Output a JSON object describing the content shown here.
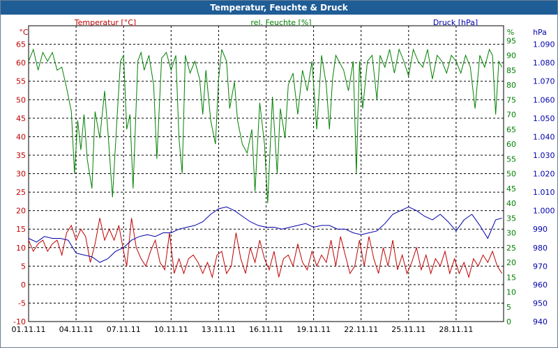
{
  "window": {
    "title": "Temperatur, Feuchte & Druck"
  },
  "colors": {
    "temperature": "#c00000",
    "humidity": "#008000",
    "pressure": "#0000aa",
    "grid": "#000000",
    "title_bar": "#1f5d96"
  },
  "chart_data": {
    "type": "line",
    "title": "Temperatur, Feuchte & Druck",
    "grid": true,
    "x_ticks": [
      "01.11.11",
      "04.11.11",
      "07.11.11",
      "10.11.11",
      "13.11.11",
      "16.11.11",
      "19.11.11",
      "22.11.11",
      "25.11.11",
      "28.11.11"
    ],
    "x_range_days": [
      1,
      31
    ],
    "axes": {
      "temperature": {
        "label": "Temperatur [°C]",
        "unit": "°C",
        "range": [
          -10,
          70
        ],
        "ticks": [
          -10,
          -5,
          0,
          5,
          10,
          15,
          20,
          25,
          30,
          35,
          40,
          45,
          50,
          55,
          60,
          65
        ]
      },
      "humidity": {
        "label": "rel. Feuchte [%]",
        "unit": "%",
        "range": [
          0,
          100
        ],
        "ticks": [
          0,
          5,
          10,
          15,
          20,
          25,
          30,
          35,
          40,
          45,
          50,
          55,
          60,
          65,
          70,
          75,
          80,
          85,
          90,
          95
        ]
      },
      "pressure": {
        "label": "Druck [hPa]",
        "unit": "hPa",
        "range": [
          940,
          1100
        ],
        "ticks": [
          "940",
          "950",
          "960",
          "970",
          "980",
          "990",
          "1.000",
          "1.010",
          "1.020",
          "1.030",
          "1.040",
          "1.050",
          "1.060",
          "1.070",
          "1.080",
          "1.090"
        ]
      }
    },
    "series": [
      {
        "name": "Temperatur [°C]",
        "axis": "temperature",
        "points": [
          [
            1.0,
            12
          ],
          [
            1.3,
            9
          ],
          [
            1.6,
            11
          ],
          [
            1.9,
            12
          ],
          [
            2.2,
            9
          ],
          [
            2.5,
            11
          ],
          [
            2.8,
            12
          ],
          [
            3.1,
            8
          ],
          [
            3.4,
            14
          ],
          [
            3.7,
            16
          ],
          [
            4.0,
            12
          ],
          [
            4.3,
            15
          ],
          [
            4.6,
            13
          ],
          [
            4.9,
            6
          ],
          [
            5.2,
            11
          ],
          [
            5.5,
            18
          ],
          [
            5.8,
            12
          ],
          [
            6.1,
            15
          ],
          [
            6.4,
            12
          ],
          [
            6.7,
            16
          ],
          [
            7.0,
            9
          ],
          [
            7.2,
            5
          ],
          [
            7.5,
            18
          ],
          [
            7.8,
            10
          ],
          [
            8.1,
            7
          ],
          [
            8.4,
            5
          ],
          [
            8.7,
            9
          ],
          [
            9.0,
            12
          ],
          [
            9.3,
            6
          ],
          [
            9.6,
            4
          ],
          [
            9.9,
            14
          ],
          [
            10.2,
            3
          ],
          [
            10.5,
            7
          ],
          [
            10.8,
            3
          ],
          [
            11.1,
            7
          ],
          [
            11.4,
            8
          ],
          [
            11.7,
            6
          ],
          [
            12.0,
            3
          ],
          [
            12.3,
            6
          ],
          [
            12.6,
            2
          ],
          [
            12.9,
            8
          ],
          [
            13.2,
            9
          ],
          [
            13.5,
            3
          ],
          [
            13.8,
            5
          ],
          [
            14.1,
            14
          ],
          [
            14.4,
            7
          ],
          [
            14.7,
            3
          ],
          [
            15.0,
            10
          ],
          [
            15.3,
            6
          ],
          [
            15.6,
            12
          ],
          [
            15.9,
            7
          ],
          [
            16.2,
            4
          ],
          [
            16.5,
            9
          ],
          [
            16.8,
            2
          ],
          [
            17.1,
            7
          ],
          [
            17.4,
            8
          ],
          [
            17.7,
            5
          ],
          [
            18.0,
            11
          ],
          [
            18.3,
            6
          ],
          [
            18.6,
            4
          ],
          [
            18.9,
            9
          ],
          [
            19.2,
            5
          ],
          [
            19.5,
            8
          ],
          [
            19.8,
            6
          ],
          [
            20.1,
            12
          ],
          [
            20.4,
            5
          ],
          [
            20.7,
            13
          ],
          [
            21.0,
            8
          ],
          [
            21.3,
            3
          ],
          [
            21.6,
            5
          ],
          [
            21.9,
            12
          ],
          [
            22.2,
            5
          ],
          [
            22.5,
            13
          ],
          [
            22.8,
            7
          ],
          [
            23.1,
            3
          ],
          [
            23.4,
            10
          ],
          [
            23.7,
            5
          ],
          [
            24.0,
            12
          ],
          [
            24.3,
            4
          ],
          [
            24.6,
            8
          ],
          [
            24.9,
            3
          ],
          [
            25.2,
            6
          ],
          [
            25.5,
            10
          ],
          [
            25.8,
            4
          ],
          [
            26.1,
            8
          ],
          [
            26.4,
            3
          ],
          [
            26.7,
            7
          ],
          [
            27.0,
            5
          ],
          [
            27.3,
            9
          ],
          [
            27.6,
            3
          ],
          [
            27.9,
            7
          ],
          [
            28.2,
            3
          ],
          [
            28.5,
            6
          ],
          [
            28.8,
            2
          ],
          [
            29.1,
            7
          ],
          [
            29.4,
            5
          ],
          [
            29.7,
            8
          ],
          [
            30.0,
            6
          ],
          [
            30.3,
            9
          ],
          [
            30.6,
            5
          ],
          [
            30.9,
            3
          ]
        ]
      },
      {
        "name": "rel. Feuchte [%]",
        "axis": "humidity",
        "points": [
          [
            1.0,
            88
          ],
          [
            1.3,
            92
          ],
          [
            1.6,
            85
          ],
          [
            1.9,
            91
          ],
          [
            2.2,
            88
          ],
          [
            2.5,
            91
          ],
          [
            2.8,
            85
          ],
          [
            3.1,
            86
          ],
          [
            3.4,
            79
          ],
          [
            3.7,
            71
          ],
          [
            3.9,
            50
          ],
          [
            4.1,
            68
          ],
          [
            4.3,
            58
          ],
          [
            4.5,
            70
          ],
          [
            4.7,
            55
          ],
          [
            5.0,
            45
          ],
          [
            5.2,
            71
          ],
          [
            5.5,
            62
          ],
          [
            5.8,
            78
          ],
          [
            6.0,
            65
          ],
          [
            6.3,
            42
          ],
          [
            6.6,
            70
          ],
          [
            6.8,
            88
          ],
          [
            7.0,
            90
          ],
          [
            7.2,
            65
          ],
          [
            7.4,
            70
          ],
          [
            7.6,
            45
          ],
          [
            7.9,
            88
          ],
          [
            8.1,
            91
          ],
          [
            8.3,
            85
          ],
          [
            8.6,
            90
          ],
          [
            8.9,
            80
          ],
          [
            9.1,
            55
          ],
          [
            9.4,
            89
          ],
          [
            9.7,
            91
          ],
          [
            10.0,
            85
          ],
          [
            10.3,
            90
          ],
          [
            10.5,
            62
          ],
          [
            10.7,
            50
          ],
          [
            10.9,
            90
          ],
          [
            11.2,
            84
          ],
          [
            11.5,
            88
          ],
          [
            11.8,
            82
          ],
          [
            12.0,
            70
          ],
          [
            12.2,
            85
          ],
          [
            12.5,
            68
          ],
          [
            12.8,
            60
          ],
          [
            13.0,
            82
          ],
          [
            13.2,
            92
          ],
          [
            13.5,
            88
          ],
          [
            13.7,
            72
          ],
          [
            14.0,
            81
          ],
          [
            14.2,
            68
          ],
          [
            14.5,
            60
          ],
          [
            14.8,
            57
          ],
          [
            15.1,
            65
          ],
          [
            15.3,
            44
          ],
          [
            15.6,
            74
          ],
          [
            15.9,
            60
          ],
          [
            16.1,
            40
          ],
          [
            16.4,
            76
          ],
          [
            16.7,
            50
          ],
          [
            16.9,
            72
          ],
          [
            17.2,
            62
          ],
          [
            17.4,
            80
          ],
          [
            17.7,
            84
          ],
          [
            18.0,
            70
          ],
          [
            18.3,
            85
          ],
          [
            18.6,
            78
          ],
          [
            18.9,
            88
          ],
          [
            19.2,
            65
          ],
          [
            19.5,
            90
          ],
          [
            19.8,
            80
          ],
          [
            20.0,
            65
          ],
          [
            20.2,
            82
          ],
          [
            20.4,
            90
          ],
          [
            20.6,
            88
          ],
          [
            20.9,
            85
          ],
          [
            21.2,
            78
          ],
          [
            21.5,
            88
          ],
          [
            21.7,
            50
          ],
          [
            21.9,
            88
          ],
          [
            22.1,
            72
          ],
          [
            22.4,
            88
          ],
          [
            22.7,
            90
          ],
          [
            23.0,
            75
          ],
          [
            23.2,
            90
          ],
          [
            23.5,
            86
          ],
          [
            23.8,
            92
          ],
          [
            24.1,
            84
          ],
          [
            24.4,
            92
          ],
          [
            24.7,
            88
          ],
          [
            25.0,
            83
          ],
          [
            25.3,
            92
          ],
          [
            25.6,
            88
          ],
          [
            25.9,
            86
          ],
          [
            26.2,
            92
          ],
          [
            26.5,
            82
          ],
          [
            26.8,
            90
          ],
          [
            27.1,
            88
          ],
          [
            27.4,
            84
          ],
          [
            27.7,
            90
          ],
          [
            28.0,
            88
          ],
          [
            28.3,
            84
          ],
          [
            28.6,
            90
          ],
          [
            28.9,
            86
          ],
          [
            29.2,
            72
          ],
          [
            29.5,
            90
          ],
          [
            29.8,
            86
          ],
          [
            30.1,
            92
          ],
          [
            30.3,
            90
          ],
          [
            30.5,
            70
          ],
          [
            30.7,
            88
          ],
          [
            30.9,
            86
          ]
        ]
      },
      {
        "name": "Druck [hPa]",
        "axis": "pressure",
        "points": [
          [
            1.0,
            985
          ],
          [
            1.5,
            983
          ],
          [
            2.0,
            986
          ],
          [
            2.5,
            985
          ],
          [
            3.0,
            985
          ],
          [
            3.5,
            984
          ],
          [
            4.0,
            977
          ],
          [
            4.5,
            976
          ],
          [
            5.0,
            975
          ],
          [
            5.5,
            972
          ],
          [
            6.0,
            974
          ],
          [
            6.5,
            978
          ],
          [
            7.0,
            980
          ],
          [
            7.5,
            984
          ],
          [
            8.0,
            986
          ],
          [
            8.5,
            987
          ],
          [
            9.0,
            986
          ],
          [
            9.5,
            988
          ],
          [
            10.0,
            988
          ],
          [
            10.5,
            990
          ],
          [
            11.0,
            991
          ],
          [
            11.5,
            992
          ],
          [
            12.0,
            994
          ],
          [
            12.5,
            998
          ],
          [
            13.0,
            1001
          ],
          [
            13.5,
            1002
          ],
          [
            14.0,
            1000
          ],
          [
            14.5,
            997
          ],
          [
            15.0,
            994
          ],
          [
            15.5,
            992
          ],
          [
            16.0,
            991
          ],
          [
            16.5,
            991
          ],
          [
            17.0,
            990
          ],
          [
            17.5,
            991
          ],
          [
            18.0,
            992
          ],
          [
            18.5,
            993
          ],
          [
            19.0,
            991
          ],
          [
            19.5,
            992
          ],
          [
            20.0,
            992
          ],
          [
            20.5,
            990
          ],
          [
            21.0,
            990
          ],
          [
            21.5,
            988
          ],
          [
            22.0,
            987
          ],
          [
            22.5,
            988
          ],
          [
            23.0,
            989
          ],
          [
            23.5,
            993
          ],
          [
            24.0,
            998
          ],
          [
            24.5,
            1000
          ],
          [
            25.0,
            1002
          ],
          [
            25.5,
            1000
          ],
          [
            26.0,
            997
          ],
          [
            26.5,
            995
          ],
          [
            27.0,
            998
          ],
          [
            27.5,
            994
          ],
          [
            28.0,
            989
          ],
          [
            28.5,
            995
          ],
          [
            29.0,
            998
          ],
          [
            29.5,
            992
          ],
          [
            30.0,
            985
          ],
          [
            30.5,
            995
          ],
          [
            30.9,
            996
          ]
        ]
      }
    ]
  }
}
